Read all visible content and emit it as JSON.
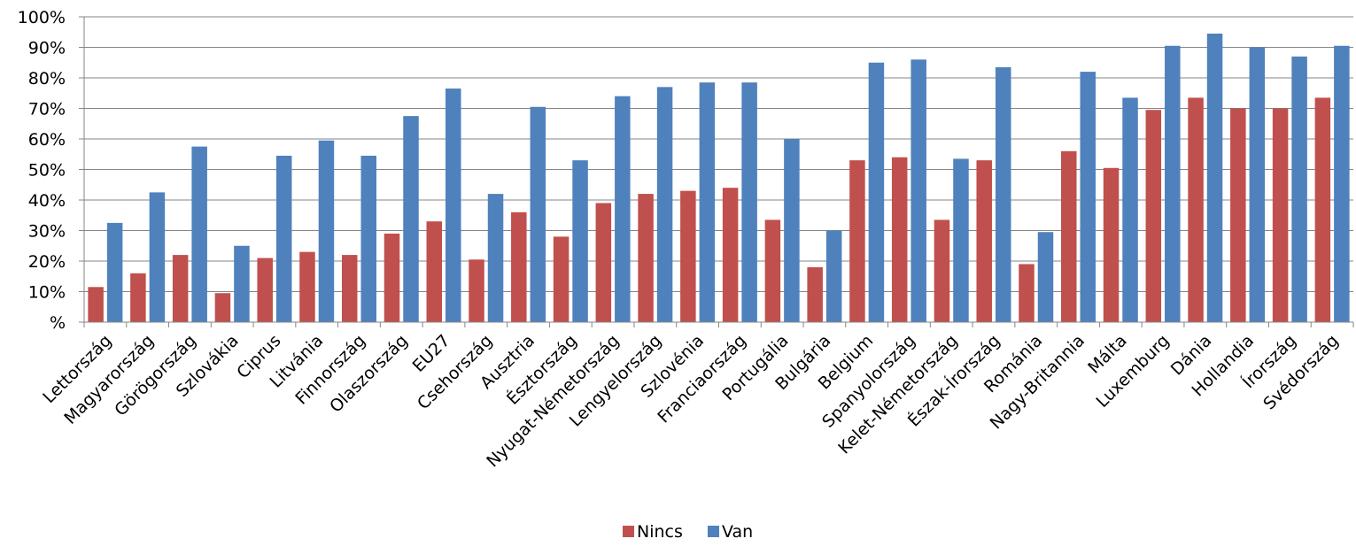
{
  "chart_data": {
    "type": "bar",
    "categories": [
      "Lettország",
      "Magyarország",
      "Görögország",
      "Szlovákia",
      "Ciprus",
      "Litvánia",
      "Finnország",
      "Olaszország",
      "EU27",
      "Csehország",
      "Ausztria",
      "Észtország",
      "Nyugat-Németország",
      "Lengyelország",
      "Szlovénia",
      "Franciaország",
      "Portugália",
      "Bulgária",
      "Belgium",
      "Spanyolország",
      "Kelet-Németország",
      "Észak-Írország",
      "Románia",
      "Nagy-Britannia",
      "Málta",
      "Luxemburg",
      "Dánia",
      "Hollandia",
      "Írország",
      "Svédország"
    ],
    "series": [
      {
        "name": "Nincs",
        "color": "#C0504D",
        "values": [
          11.5,
          16,
          22,
          9.5,
          21,
          23,
          22,
          29,
          33,
          20.5,
          36,
          28,
          39,
          42,
          43,
          44,
          33.5,
          18,
          53,
          54,
          33.5,
          53,
          19,
          56,
          50.5,
          69.5,
          73.5,
          70,
          70,
          73.5
        ]
      },
      {
        "name": "Van",
        "color": "#4F81BD",
        "values": [
          32.5,
          42.5,
          57.5,
          25,
          54.5,
          59.5,
          54.5,
          67.5,
          76.5,
          42,
          70.5,
          53,
          74,
          77,
          78.5,
          78.5,
          60,
          30,
          85,
          86,
          53.5,
          83.5,
          29.5,
          82,
          73.5,
          90.5,
          94.5,
          90,
          87,
          90.5
        ]
      }
    ],
    "yticks": [
      "%",
      "10%",
      "20%",
      "30%",
      "40%",
      "50%",
      "60%",
      "70%",
      "80%",
      "90%",
      "100%"
    ],
    "ylim": [
      0,
      100
    ],
    "grid": true,
    "legend_position": "bottom"
  }
}
